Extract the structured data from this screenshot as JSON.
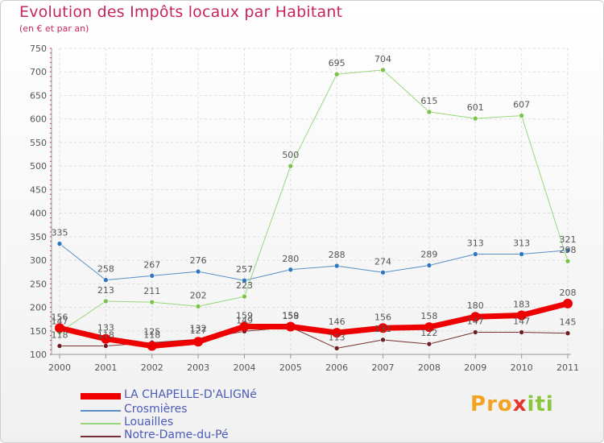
{
  "header": {
    "title": "Evolution des Impôts locaux par Habitant",
    "subtitle": "(en € et par an)"
  },
  "logo": {
    "text": "Proxiti",
    "colors": [
      "#f3a320",
      "#4aa3df",
      "#e5342c",
      "#8cc63f"
    ]
  },
  "chart_data": {
    "type": "line",
    "title": "Evolution des Impôts locaux par Habitant",
    "subtitle": "(en € et par an)",
    "xlabel": "",
    "ylabel": "",
    "ylim": [
      100,
      750
    ],
    "yticks": [
      100,
      150,
      200,
      250,
      300,
      350,
      400,
      450,
      500,
      550,
      600,
      650,
      700,
      750
    ],
    "grid": true,
    "legend_position": "bottom-left",
    "x": [
      "2000",
      "2001",
      "2002",
      "2003",
      "2004",
      "2005",
      "2006",
      "2007",
      "2008",
      "2009",
      "2010",
      "2011"
    ],
    "series": [
      {
        "name": "Crosmières",
        "color": "#5b8ec9",
        "point_color": "#2f77c1",
        "width": 1,
        "values": [
          335,
          258,
          267,
          276,
          257,
          280,
          288,
          274,
          289,
          313,
          313,
          321
        ],
        "labels": [
          "335",
          "258",
          "267",
          "276",
          "257",
          "280",
          "288",
          "274",
          "289",
          "313",
          "313",
          "321"
        ]
      },
      {
        "name": "Louailles",
        "color": "#9ad77c",
        "point_color": "#7cc348",
        "width": 1,
        "values": [
          147,
          213,
          211,
          202,
          223,
          500,
          695,
          704,
          615,
          601,
          607,
          298
        ],
        "labels": [
          "147",
          "213",
          "211",
          "202",
          "223",
          "500",
          "695",
          "704",
          "615",
          "601",
          "607",
          "298"
        ]
      },
      {
        "name": "Notre-Dame-du-Pé",
        "color": "#7a2f32",
        "point_color": "#6a1f22",
        "width": 1,
        "values": [
          118,
          118,
          125,
          132,
          149,
          158,
          113,
          131,
          122,
          147,
          147,
          145
        ],
        "labels": [
          "118",
          "118",
          "125",
          "132",
          "149",
          "158",
          "113",
          "131",
          "122",
          "147",
          "147",
          "145"
        ]
      },
      {
        "name": "LA CHAPELLE-D'ALIGNé",
        "color": "#ee0000",
        "point_color": "#ee0000",
        "width": 7,
        "values": [
          156,
          133,
          118,
          127,
          159,
          159,
          146,
          156,
          158,
          180,
          183,
          208
        ],
        "labels": [
          "156",
          "133",
          "118",
          "127",
          "159",
          "159",
          "146",
          "156",
          "158",
          "180",
          "183",
          "208"
        ]
      }
    ]
  },
  "legend": [
    {
      "label": "LA CHAPELLE-D'ALIGNé",
      "color": "#ee0000",
      "thickness": 8
    },
    {
      "label": "Crosmières",
      "color": "#5b8ec9",
      "thickness": 2
    },
    {
      "label": "Louailles",
      "color": "#9ad77c",
      "thickness": 2
    },
    {
      "label": "Notre-Dame-du-Pé",
      "color": "#7a2f32",
      "thickness": 2
    }
  ]
}
